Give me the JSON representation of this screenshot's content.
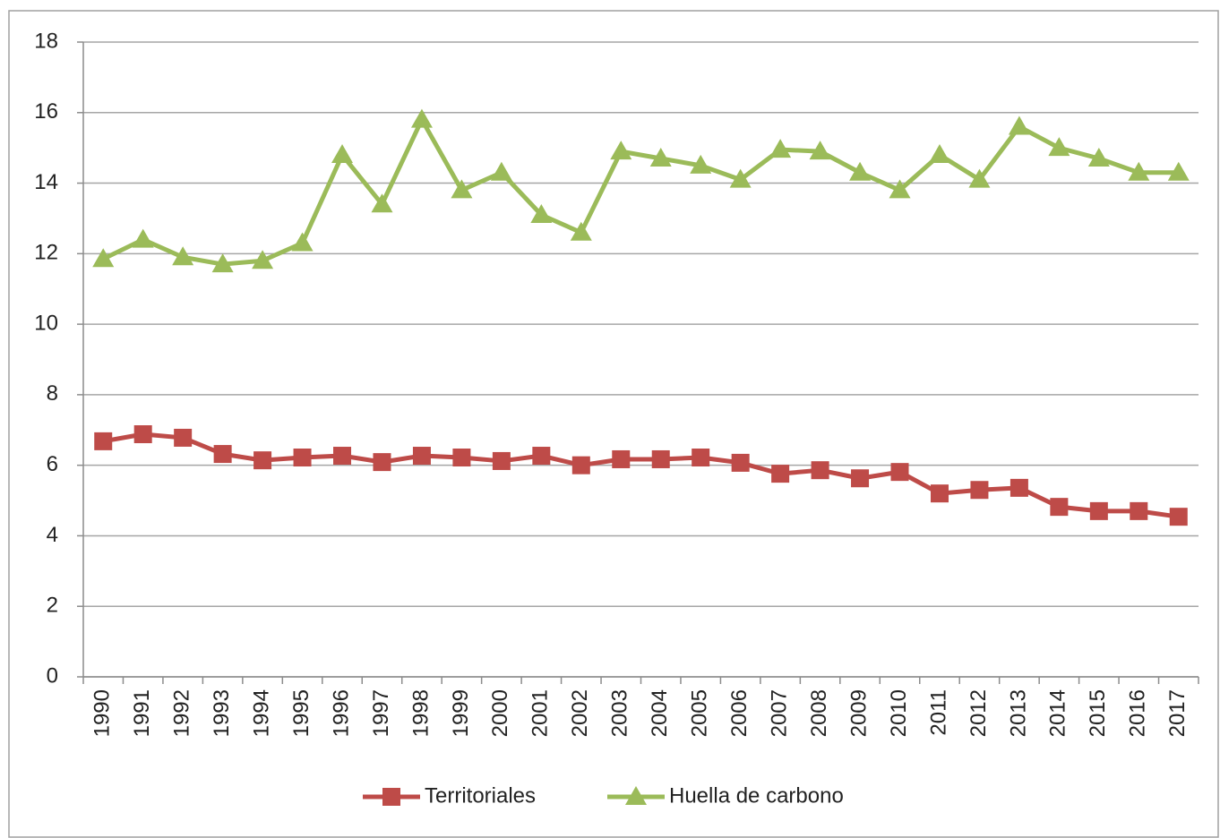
{
  "chart_data": {
    "type": "line",
    "categories": [
      "1990",
      "1991",
      "1992",
      "1993",
      "1994",
      "1995",
      "1996",
      "1997",
      "1998",
      "1999",
      "2000",
      "2001",
      "2002",
      "2003",
      "2004",
      "2005",
      "2006",
      "2007",
      "2008",
      "2009",
      "2010",
      "2011",
      "2012",
      "2013",
      "2014",
      "2015",
      "2016",
      "2017"
    ],
    "series": [
      {
        "name": "Territoriales",
        "color": "#be4b48",
        "marker": "square",
        "values": [
          6.68,
          6.88,
          6.78,
          6.32,
          6.14,
          6.22,
          6.27,
          6.09,
          6.27,
          6.22,
          6.12,
          6.27,
          6.0,
          6.17,
          6.17,
          6.22,
          6.07,
          5.76,
          5.86,
          5.63,
          5.81,
          5.2,
          5.3,
          5.36,
          4.82,
          4.7,
          4.7,
          4.54
        ]
      },
      {
        "name": "Huella de carbono",
        "color": "#9bbb59",
        "marker": "triangle",
        "values": [
          11.85,
          12.4,
          11.9,
          11.7,
          11.8,
          12.3,
          14.8,
          13.4,
          15.8,
          13.8,
          14.3,
          13.1,
          12.6,
          14.9,
          14.7,
          14.5,
          14.1,
          14.95,
          14.9,
          14.3,
          13.8,
          14.8,
          14.1,
          15.6,
          15.0,
          14.7,
          14.3,
          14.3
        ]
      }
    ],
    "ylim": [
      0,
      18
    ],
    "yticks": [
      0,
      2,
      4,
      6,
      8,
      10,
      12,
      14,
      16,
      18
    ],
    "grid": true,
    "legend": "bottom"
  }
}
